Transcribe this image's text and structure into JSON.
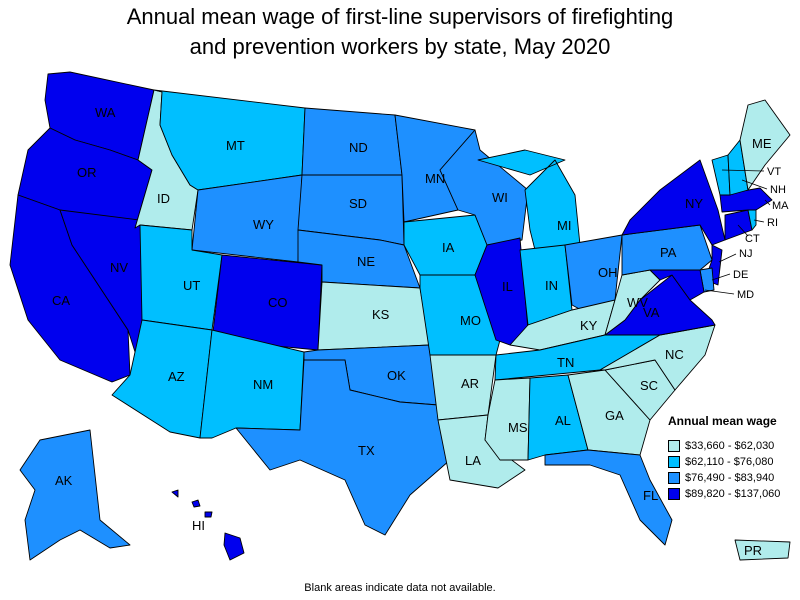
{
  "title": {
    "line1": "Annual mean wage of first-line supervisors of firefighting",
    "line2": "and prevention workers by state, May 2020"
  },
  "legend": {
    "title": "Annual mean wage",
    "ranges": [
      {
        "label": "$33,660 - $62,030",
        "color": "#b0ecec"
      },
      {
        "label": "$62,110 - $76,080",
        "color": "#00bfff"
      },
      {
        "label": "$76,490 - $83,940",
        "color": "#1e90ff"
      },
      {
        "label": "$89,820 - $137,060",
        "color": "#0000ee"
      }
    ]
  },
  "footnote": "Blank areas indicate data not available.",
  "states": {
    "WA": 3,
    "OR": 3,
    "CA": 3,
    "NV": 3,
    "ID": 0,
    "MT": 1,
    "WY": 2,
    "UT": 1,
    "AZ": 1,
    "CO": 3,
    "NM": 1,
    "ND": 2,
    "SD": 2,
    "NE": 2,
    "KS": 0,
    "OK": 2,
    "TX": 2,
    "MN": 2,
    "IA": 1,
    "MO": 1,
    "AR": 0,
    "LA": 0,
    "WI": 2,
    "IL": 3,
    "MI": 1,
    "IN": 1,
    "OH": 2,
    "KY": 0,
    "TN": 1,
    "MS": 0,
    "AL": 1,
    "GA": 0,
    "FL": 2,
    "SC": 0,
    "NC": 0,
    "VA": 3,
    "WV": 0,
    "PA": 2,
    "NY": 3,
    "ME": 0,
    "VT": 1,
    "NH": 1,
    "MA": 3,
    "RI": 1,
    "CT": 3,
    "NJ": 3,
    "DE": 2,
    "MD": 3,
    "AK": 2,
    "HI": 3,
    "PR": 0
  }
}
